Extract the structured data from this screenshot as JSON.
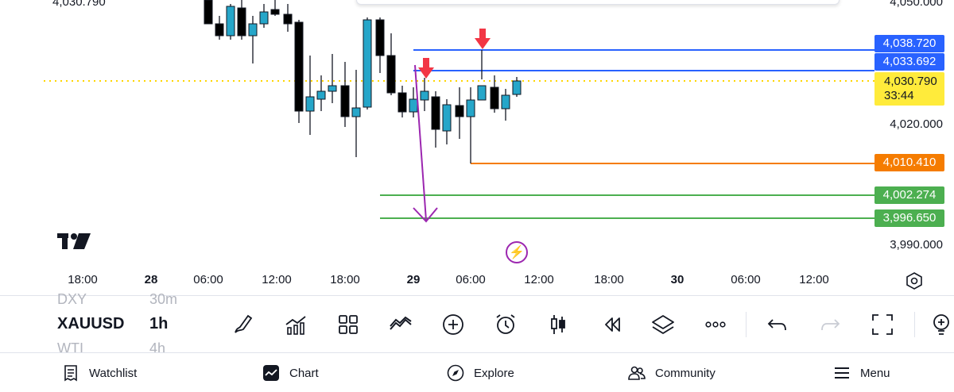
{
  "chart": {
    "symbol": "XAUUSD",
    "interval": "1h",
    "ghost_symbol_above": "DXY",
    "ghost_interval_above": "30m",
    "ghost_symbol_below": "WTI",
    "ghost_interval_below": "4h",
    "last_price_top": "4,030.790",
    "price_axis": [
      "4,050.000",
      "4,020.000",
      "3,990.000"
    ],
    "price_labels": [
      {
        "text": "4,038.720",
        "color": "#2962ff"
      },
      {
        "text": "4,033.692",
        "color": "#2962ff"
      },
      {
        "text": "4,030.790",
        "color": "#ffeb3b",
        "text_color": "#131722",
        "sub": "33:44"
      },
      {
        "text": "4,010.410",
        "color": "#f57c00"
      },
      {
        "text": "4,002.274",
        "color": "#4caf50"
      },
      {
        "text": "3,996.650",
        "color": "#4caf50"
      }
    ],
    "time_axis": [
      {
        "text": "18:00",
        "bold": false
      },
      {
        "text": "28",
        "bold": true
      },
      {
        "text": "06:00",
        "bold": false
      },
      {
        "text": "12:00",
        "bold": false
      },
      {
        "text": "18:00",
        "bold": false
      },
      {
        "text": "29",
        "bold": true
      },
      {
        "text": "06:00",
        "bold": false
      },
      {
        "text": "12:00",
        "bold": false
      },
      {
        "text": "18:00",
        "bold": false
      },
      {
        "text": "30",
        "bold": true
      },
      {
        "text": "06:00",
        "bold": false
      },
      {
        "text": "12:00",
        "bold": false
      }
    ],
    "colors": {
      "up_candle": "#26a6c9",
      "down_candle": "#000000",
      "blue_line": "#2962ff",
      "orange_line": "#f57c00",
      "green_line": "#4caf50",
      "current_price": "#ffd600",
      "arrow_red": "#f23645",
      "trend_purple": "#9c27b0"
    }
  },
  "toolbar": {
    "icons": [
      "brush-icon",
      "indicators-icon",
      "templates-icon",
      "compare-icon",
      "add-icon",
      "alert-icon",
      "candles-icon",
      "replay-icon",
      "layers-icon",
      "more-icon",
      "undo-icon",
      "redo-icon",
      "fullscreen-icon",
      "idea-icon"
    ]
  },
  "nav": {
    "watchlist": "Watchlist",
    "chart": "Chart",
    "explore": "Explore",
    "community": "Community",
    "menu": "Menu"
  }
}
